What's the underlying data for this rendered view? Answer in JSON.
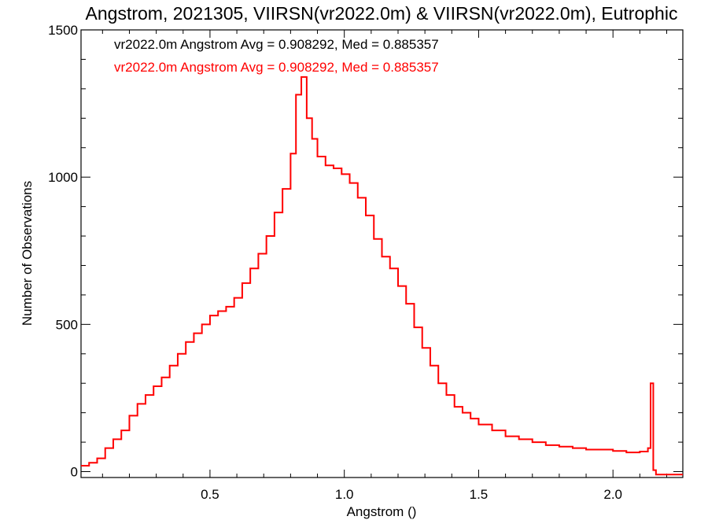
{
  "chart_data": {
    "type": "line",
    "title": "Angstrom, 2021305, VIIRSN(vr2022.0m) & VIIRSN(vr2022.0m), Eutrophic",
    "xlabel": "Angstrom ()",
    "ylabel": "Number of Observations",
    "xlim": [
      0.02,
      2.26
    ],
    "ylim": [
      -20,
      1500
    ],
    "xticks": [
      0.5,
      1.0,
      1.5,
      2.0
    ],
    "xtick_labels": [
      "0.5",
      "1.0",
      "1.5",
      "2.0"
    ],
    "yticks": [
      0,
      500,
      1000,
      1500
    ],
    "ytick_labels": [
      "0",
      "500",
      "1000",
      "1500"
    ],
    "grid": false,
    "legend": "top-left",
    "annotations": [
      {
        "text": "vr2022.0m Angstrom Avg = 0.908292, Med = 0.885357",
        "color": "#000000"
      },
      {
        "text": "vr2022.0m Angstrom Avg = 0.908292, Med = 0.885357",
        "color": "#ff0000"
      }
    ],
    "series": [
      {
        "color": "#ff0000",
        "style": "step",
        "x": [
          0.02,
          0.05,
          0.08,
          0.11,
          0.14,
          0.17,
          0.2,
          0.23,
          0.26,
          0.29,
          0.32,
          0.35,
          0.38,
          0.41,
          0.44,
          0.47,
          0.5,
          0.53,
          0.56,
          0.59,
          0.62,
          0.65,
          0.68,
          0.71,
          0.74,
          0.77,
          0.8,
          0.82,
          0.84,
          0.86,
          0.88,
          0.9,
          0.93,
          0.96,
          0.99,
          1.02,
          1.05,
          1.08,
          1.11,
          1.14,
          1.17,
          1.2,
          1.23,
          1.26,
          1.29,
          1.32,
          1.35,
          1.38,
          1.41,
          1.44,
          1.47,
          1.5,
          1.55,
          1.6,
          1.65,
          1.7,
          1.75,
          1.8,
          1.85,
          1.9,
          1.95,
          2.0,
          2.05,
          2.1,
          2.13,
          2.14,
          2.15,
          2.16,
          2.2,
          2.26
        ],
        "y": [
          20,
          30,
          45,
          80,
          110,
          140,
          190,
          230,
          260,
          290,
          320,
          360,
          400,
          440,
          470,
          500,
          530,
          545,
          560,
          590,
          640,
          690,
          740,
          800,
          880,
          960,
          1080,
          1280,
          1340,
          1200,
          1130,
          1070,
          1040,
          1030,
          1010,
          980,
          930,
          870,
          790,
          730,
          690,
          630,
          570,
          490,
          420,
          360,
          300,
          260,
          220,
          200,
          180,
          160,
          140,
          120,
          110,
          100,
          90,
          85,
          80,
          75,
          75,
          70,
          65,
          68,
          80,
          300,
          5,
          -10,
          -10,
          -10
        ]
      }
    ]
  }
}
